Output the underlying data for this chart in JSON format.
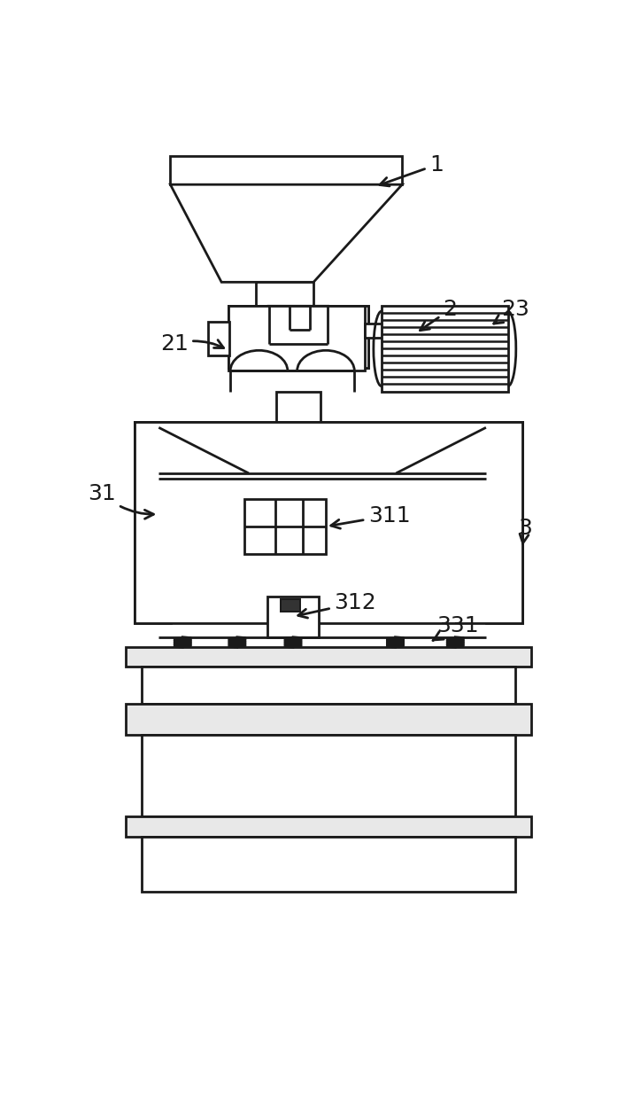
{
  "bg_color": "#ffffff",
  "lc": "#1a1a1a",
  "lw": 2.0,
  "figsize": [
    7.24,
    12.41
  ],
  "dpi": 100
}
